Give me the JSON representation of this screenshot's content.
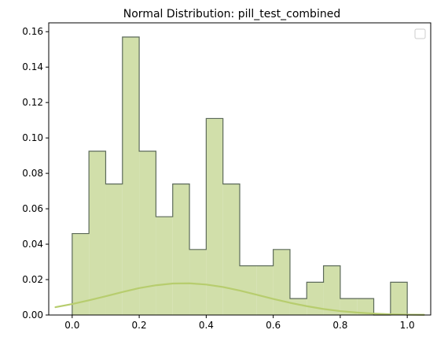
{
  "chart_data": {
    "type": "bar",
    "title": "Normal Distribution: pill_test_combined",
    "xlabel": "",
    "ylabel": "",
    "xlim": [
      -0.07,
      1.07
    ],
    "ylim": [
      0,
      0.165
    ],
    "grid": false,
    "legend": {
      "placement": "top-right",
      "entries": []
    },
    "x_ticks": [
      "0.0",
      "0.2",
      "0.4",
      "0.6",
      "0.8",
      "1.0"
    ],
    "y_ticks": [
      "0.00",
      "0.02",
      "0.04",
      "0.06",
      "0.08",
      "0.10",
      "0.12",
      "0.14",
      "0.16"
    ],
    "bins": {
      "edges": [
        0,
        0.05,
        0.1,
        0.15,
        0.2,
        0.25,
        0.3,
        0.35,
        0.4,
        0.45,
        0.5,
        0.55,
        0.6,
        0.65,
        0.7,
        0.75,
        0.8,
        0.85,
        0.9,
        0.95,
        1.0
      ],
      "values": [
        0.046,
        0.0925,
        0.074,
        0.157,
        0.0925,
        0.0555,
        0.074,
        0.037,
        0.111,
        0.074,
        0.0278,
        0.0278,
        0.037,
        0.0093,
        0.0185,
        0.0278,
        0.0093,
        0.0093,
        0,
        0.0185
      ]
    },
    "curve": {
      "type": "normal",
      "x": [
        -0.05,
        0.0,
        0.05,
        0.1,
        0.15,
        0.2,
        0.25,
        0.3,
        0.35,
        0.4,
        0.45,
        0.5,
        0.55,
        0.6,
        0.65,
        0.7,
        0.75,
        0.8,
        0.85,
        0.9,
        0.95,
        1.0,
        1.05
      ],
      "y": [
        0.0044,
        0.0062,
        0.0083,
        0.0106,
        0.013,
        0.0152,
        0.0168,
        0.0178,
        0.0179,
        0.0172,
        0.0158,
        0.0138,
        0.0115,
        0.0091,
        0.0069,
        0.005,
        0.0034,
        0.0022,
        0.0014,
        0.0008,
        0.0004,
        0.0002,
        0.0001
      ]
    },
    "colors": {
      "bar_fill": "#d1dfaa",
      "bar_edge": "#5c6a5a",
      "curve": "#b7cd6e"
    }
  }
}
